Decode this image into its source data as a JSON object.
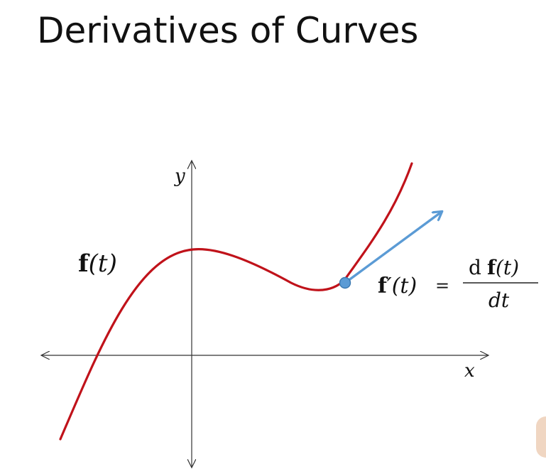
{
  "slide": {
    "title": "Derivatives of Curves"
  },
  "axes": {
    "x_label": "x",
    "y_label": "y"
  },
  "curve": {
    "label_bold": "f",
    "label_rest": "(t)",
    "color": "#c0121a"
  },
  "tangent": {
    "color": "#5b9bd5",
    "point_color": "#5b9bd5"
  },
  "equation": {
    "lhs_bold": "f",
    "lhs_rest": "′(t)",
    "equals": "=",
    "numerator_d": "d",
    "numerator_bold": "f",
    "numerator_rest": "(t)",
    "denominator": "dt"
  }
}
